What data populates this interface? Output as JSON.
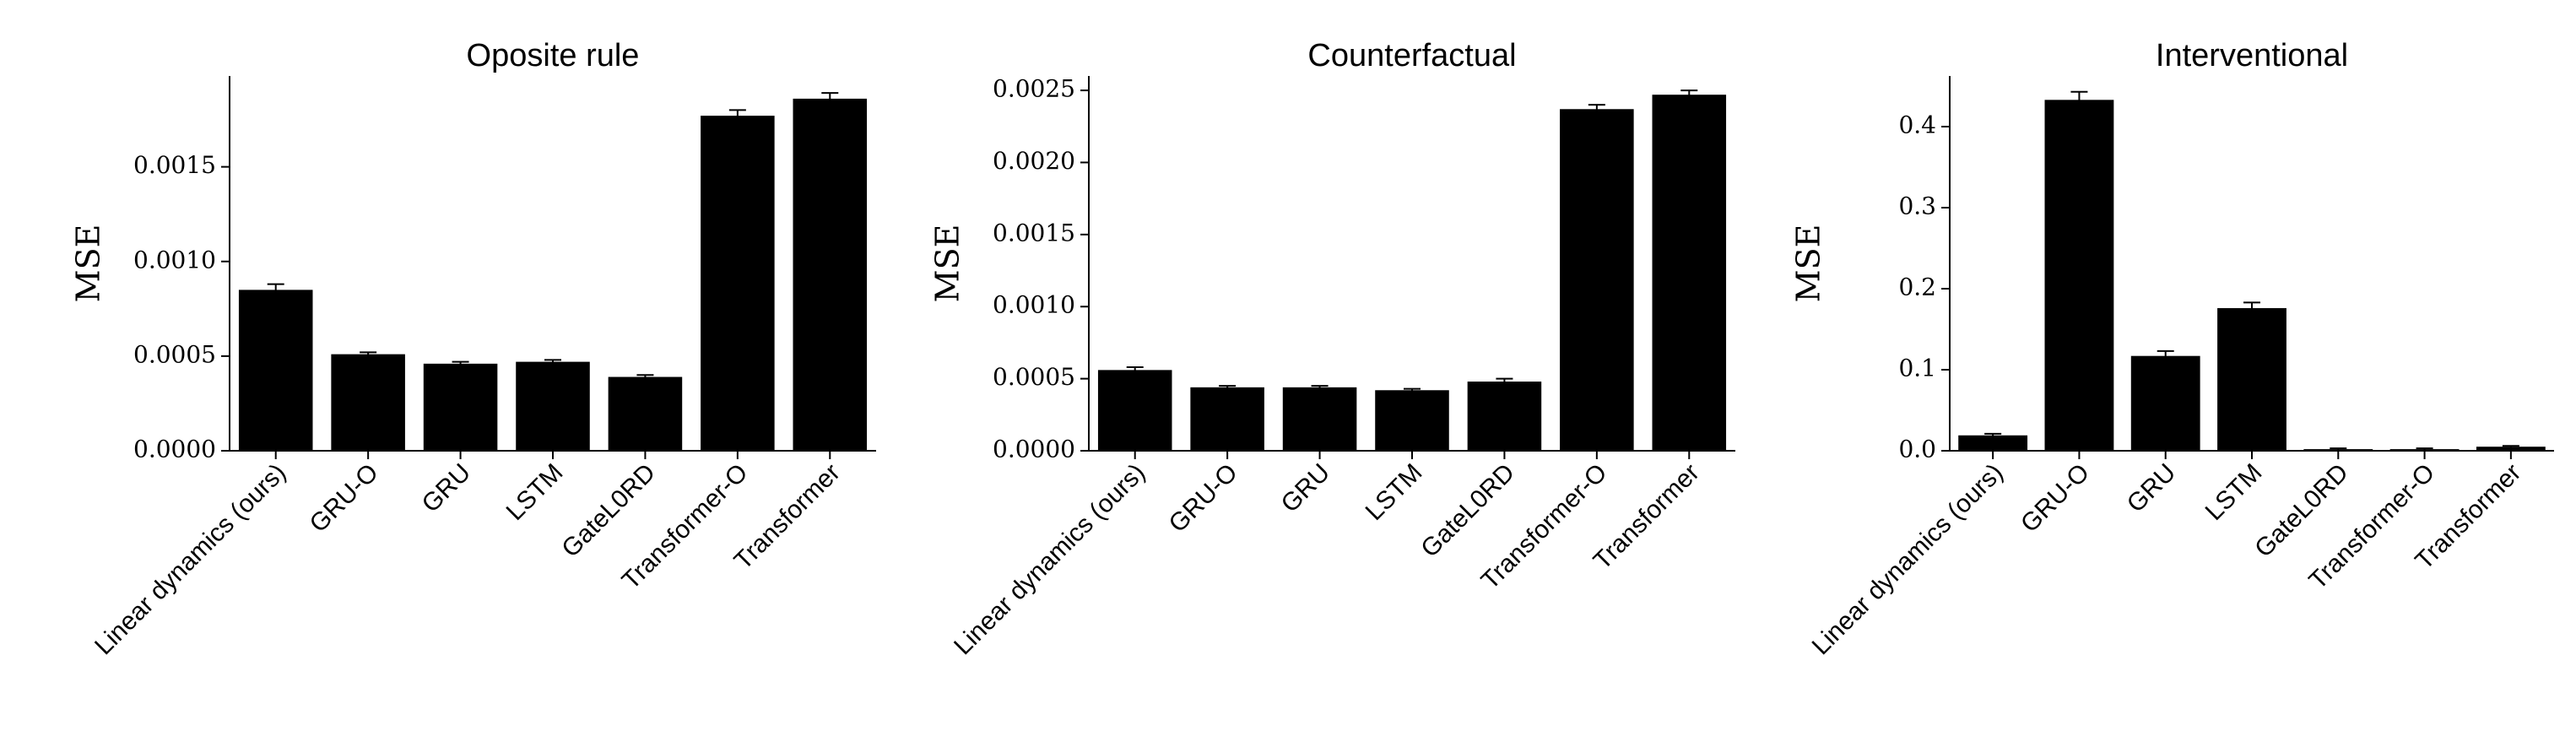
{
  "chart_data": [
    {
      "type": "bar",
      "title": "Oposite rule",
      "ylabel": "MSE",
      "categories": [
        "Linear dynamics (ours)",
        "GRU-O",
        "GRU",
        "LSTM",
        "GateL0RD",
        "Transformer-O",
        "Transformer"
      ],
      "values": [
        0.00085,
        0.00051,
        0.00046,
        0.00047,
        0.00039,
        0.00177,
        0.00186
      ],
      "errors": [
        3e-05,
        1e-05,
        1e-05,
        1e-05,
        1e-05,
        3e-05,
        3e-05
      ],
      "color": "#000000",
      "ylim": [
        0,
        0.00198
      ],
      "yticks": [
        {
          "value": 0,
          "label": "0.0000"
        },
        0.0005,
        {
          "value": 0.001,
          "label": "0.0010"
        },
        0.0015
      ]
    },
    {
      "type": "bar",
      "title": "Counterfactual",
      "ylabel": "MSE",
      "categories": [
        "Linear dynamics (ours)",
        "GRU-O",
        "GRU",
        "LSTM",
        "GateL0RD",
        "Transformer-O",
        "Transformer"
      ],
      "values": [
        0.00056,
        0.00044,
        0.00044,
        0.00042,
        0.00048,
        0.00237,
        0.00247
      ],
      "errors": [
        2e-05,
        1e-05,
        1e-05,
        1e-05,
        2e-05,
        3e-05,
        3e-05
      ],
      "color": "#000000",
      "ylim": [
        0,
        0.0026
      ],
      "yticks": [
        {
          "value": 0,
          "label": "0.0000"
        },
        0.0005,
        {
          "value": 0.001,
          "label": "0.0010"
        },
        0.0015,
        {
          "value": 0.002,
          "label": "0.0020"
        },
        0.0025
      ]
    },
    {
      "type": "bar",
      "title": "Interventional",
      "ylabel": "MSE",
      "categories": [
        "Linear dynamics (ours)",
        "GRU-O",
        "GRU",
        "LSTM",
        "GateL0RD",
        "Transformer-O",
        "Transformer"
      ],
      "values": [
        0.019,
        0.433,
        0.117,
        0.176,
        0.002,
        0.002,
        0.005
      ],
      "errors": [
        0.002,
        0.01,
        0.006,
        0.007,
        0.001,
        0.001,
        0.001
      ],
      "color": "#000000",
      "ylim": [
        0,
        0.4625
      ],
      "yticks": [
        {
          "value": 0,
          "label": "0.0"
        },
        0.1,
        0.2,
        0.3,
        0.4
      ]
    }
  ]
}
